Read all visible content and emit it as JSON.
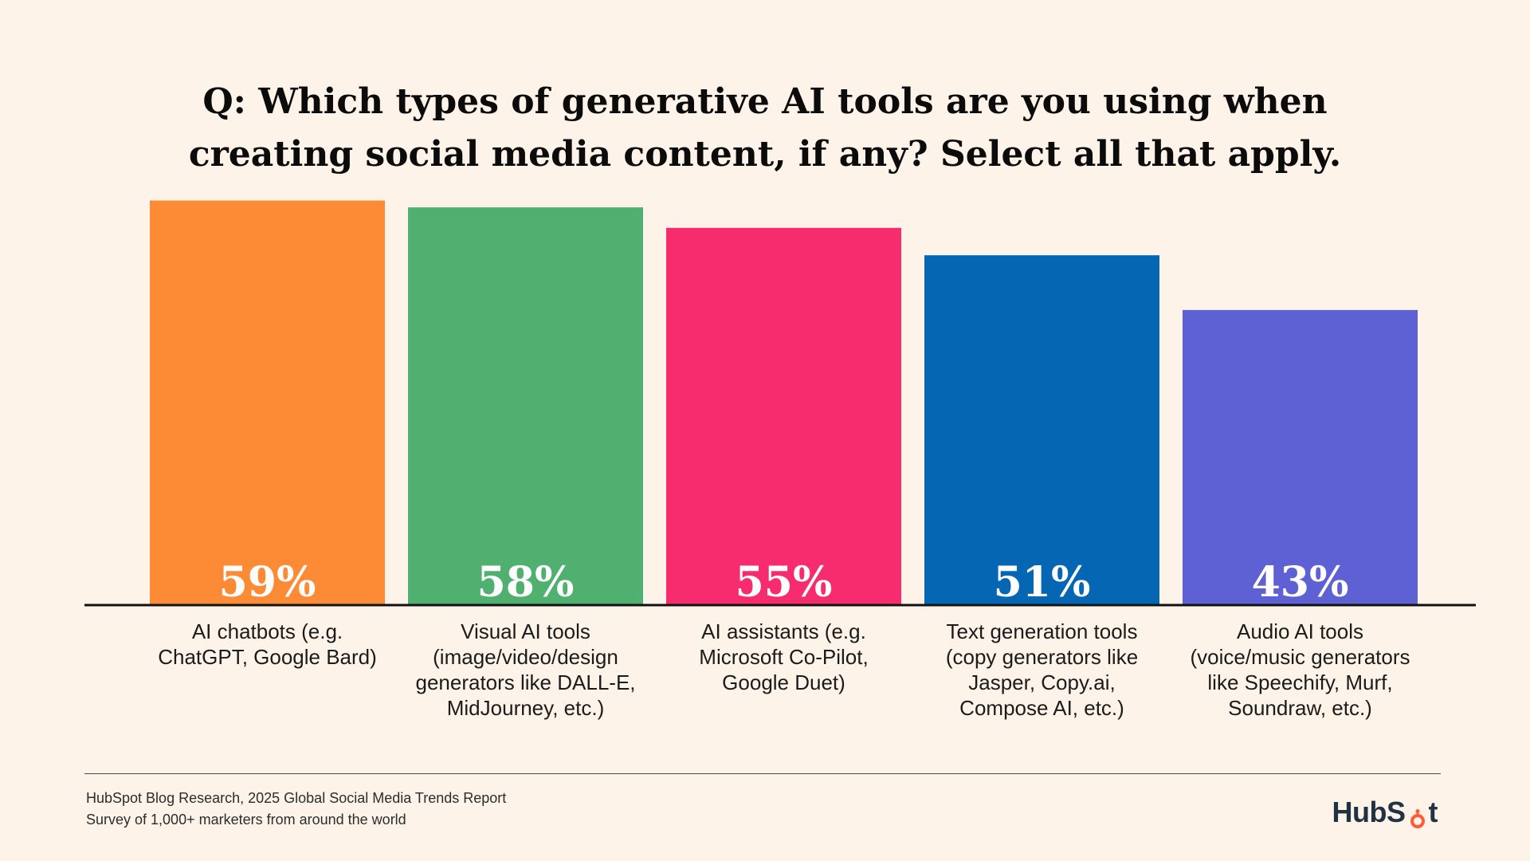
{
  "title": {
    "line1": "Q: Which types of generative AI tools are you using when",
    "line2": "creating social media content, if any? Select all that apply."
  },
  "chart_data": {
    "type": "bar",
    "title": "Q: Which types of generative AI tools are you using when creating social media content, if any? Select all that apply.",
    "categories": [
      "AI chatbots (e.g.\nChatGPT, Google Bard)",
      "Visual AI tools\n(image/video/design\ngenerators like DALL-E,\nMidJourney, etc.)",
      "AI assistants (e.g.\nMicrosoft Co-Pilot,\nGoogle Duet)",
      "Text generation tools\n(copy generators like\nJasper, Copy.ai,\nCompose AI, etc.)",
      "Audio AI tools\n(voice/music generators\nlike Speechify, Murf,\nSoundraw, etc.)"
    ],
    "values": [
      59,
      58,
      55,
      51,
      43
    ],
    "value_labels": [
      "59%",
      "58%",
      "55%",
      "51%",
      "43%"
    ],
    "colors": [
      "#fd8a34",
      "#50b06f",
      "#f72c6f",
      "#0566b3",
      "#5e61d4"
    ],
    "xlabel": "",
    "ylabel": "",
    "ylim": [
      0,
      65
    ],
    "grid": false
  },
  "footer": {
    "source_line1": "HubSpot Blog Research, 2025 Global Social Media Trends Report",
    "source_line2": "Survey of 1,000+ marketers from around the world",
    "logo_pre": "HubS",
    "logo_post": "t",
    "logo_color": "#213343",
    "logo_accent": "#ff5c35"
  }
}
